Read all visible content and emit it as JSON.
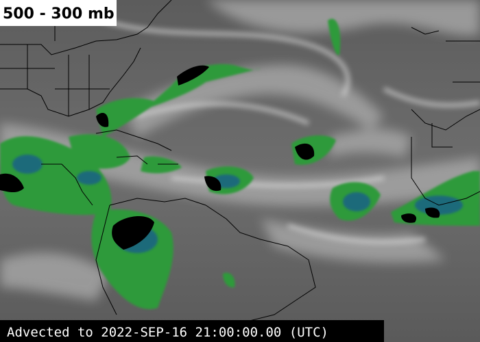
{
  "title": "500 - 300 mb",
  "footer": "Advected to 2022-SEP-16 21:00:00.00 (UTC)"
}
